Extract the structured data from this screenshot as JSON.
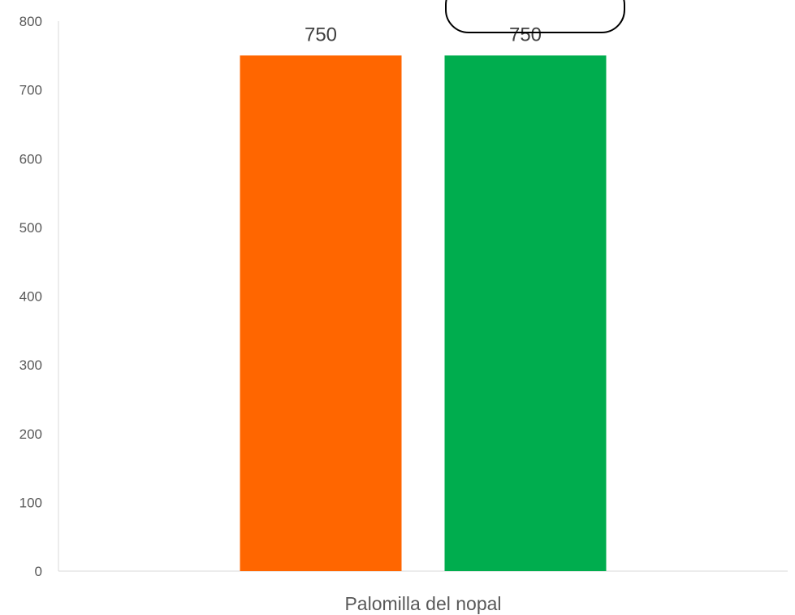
{
  "chart_data": {
    "type": "bar",
    "categories": [
      "Palomilla del nopal"
    ],
    "series": [
      {
        "values": [
          750
        ],
        "color": "#FF6600"
      },
      {
        "values": [
          750
        ],
        "color": "#00AD4E"
      }
    ],
    "ylim": [
      0,
      800
    ],
    "yticks": [
      0,
      100,
      200,
      300,
      400,
      500,
      600,
      700,
      800
    ],
    "data_labels": true,
    "grid": false
  }
}
